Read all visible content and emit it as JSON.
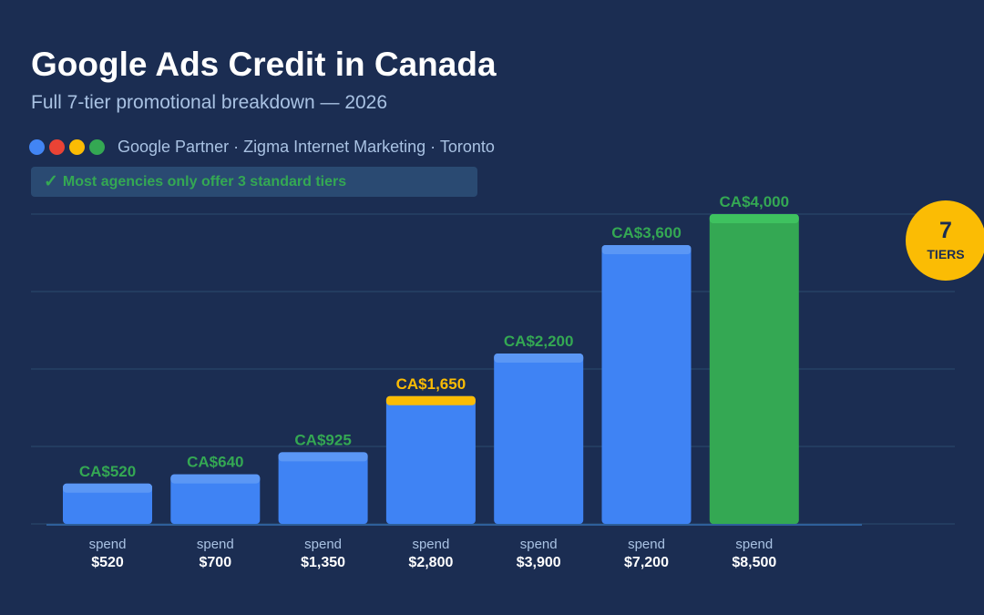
{
  "header": {
    "title": "Google Ads Credit in Canada",
    "subtitle": "Full 7-tier promotional breakdown — 2026"
  },
  "brand": {
    "dots": [
      "#4285f4",
      "#ea4335",
      "#fbbc04",
      "#34a853"
    ],
    "text": "Google Partner · Zigma Internet Marketing · Toronto"
  },
  "note": {
    "check": "✓",
    "text": "Most agencies only offer 3 standard tiers"
  },
  "badge": {
    "number": "7",
    "label": "TIERS",
    "color": "#fbbc04"
  },
  "colors": {
    "background": "#1b2d52",
    "bar": "#3f83f4",
    "bar_cap": "#5b97f5",
    "highlight_cap": "#fbbc04",
    "final_bar": "#34a853",
    "value_label": "#34a853",
    "highlight_label": "#fbbc04",
    "grid": "#2b4a6e"
  },
  "chart_data": {
    "type": "bar",
    "categories": [
      "$520",
      "$700",
      "$1,350",
      "$2,800",
      "$3,900",
      "$7,200",
      "$8,500"
    ],
    "category_prefix": "spend",
    "values": [
      520,
      640,
      925,
      1650,
      2200,
      3600,
      4000
    ],
    "value_labels": [
      "CA$520",
      "CA$640",
      "CA$925",
      "CA$1,650",
      "CA$2,200",
      "CA$3,600",
      "CA$4,000"
    ],
    "highlight_index": 3,
    "final_index": 6,
    "ylim": [
      0,
      4000
    ],
    "grid": true,
    "title": "Google Ads Credit in Canada",
    "xlabel": "",
    "ylabel": ""
  }
}
